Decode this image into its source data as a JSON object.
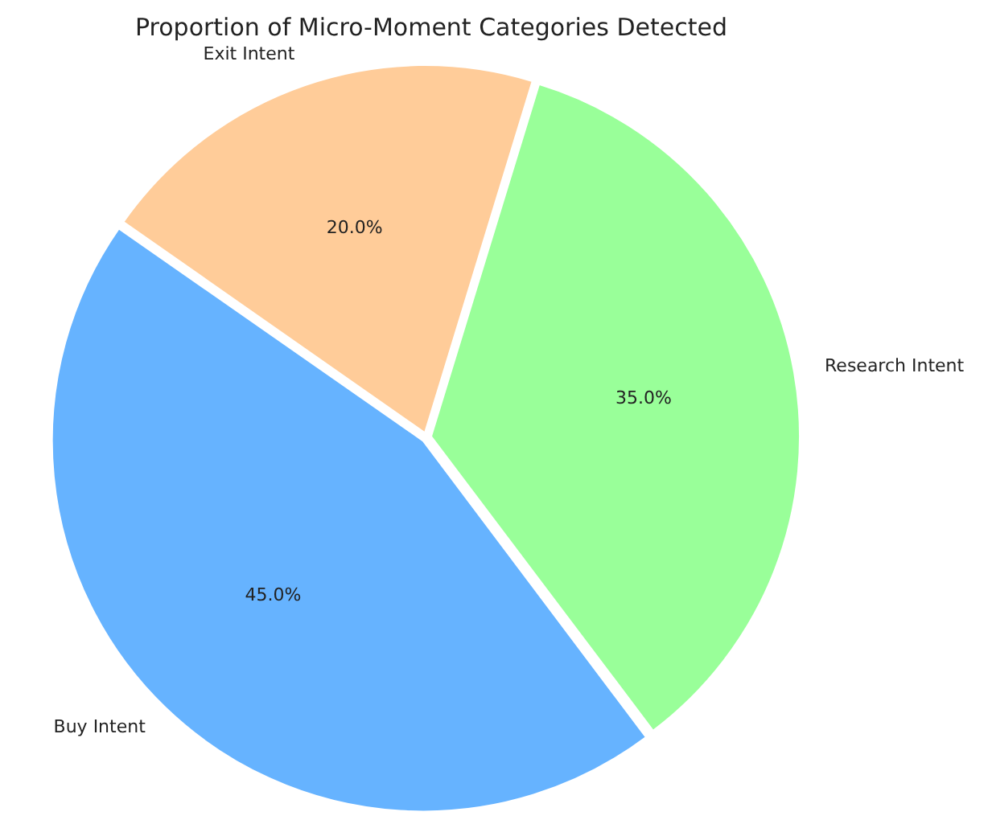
{
  "chart_data": {
    "type": "pie",
    "title": "Proportion of Micro-Moment Categories Detected",
    "categories": [
      "Exit Intent",
      "Research Intent",
      "Buy Intent"
    ],
    "values": [
      20,
      35,
      45
    ],
    "colors": [
      "#ffcc99",
      "#99ff99",
      "#66b3ff"
    ],
    "value_labels": [
      "20.0%",
      "35.0%",
      "45.0%"
    ]
  }
}
